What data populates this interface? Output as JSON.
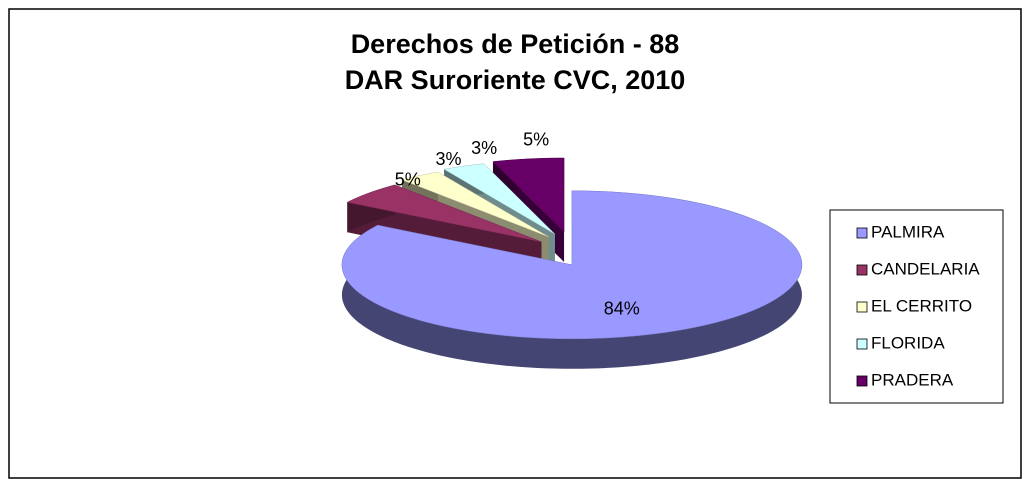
{
  "chart_data": {
    "type": "pie",
    "title": "Derechos de Petición  -  88",
    "subtitle": "DAR Suroriente CVC, 2010",
    "categories": [
      "PALMIRA",
      "CANDELARIA",
      "EL CERRITO",
      "FLORIDA",
      "PRADERA"
    ],
    "values": [
      84,
      5,
      3,
      3,
      5
    ],
    "value_labels": [
      "84%",
      "5%",
      "3%",
      "3%",
      "5%"
    ],
    "colors": [
      "#9999ff",
      "#993366",
      "#ffffcc",
      "#ccffff",
      "#660066"
    ],
    "legend": "right"
  }
}
